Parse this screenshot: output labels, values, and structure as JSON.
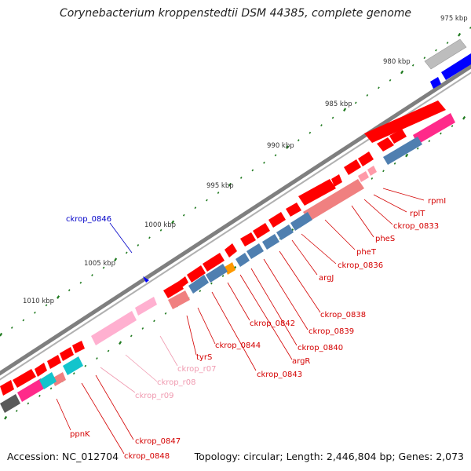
{
  "title": "Corynebacterium kroppenstedtii DSM 44385, complete genome",
  "footer": {
    "accession": "Accession: NC_012704",
    "topology": "Topology: circular; Length: 2,446,804 bp; Genes: 2,073"
  },
  "colors": {
    "backbone": "#7f7f7f",
    "cds": "#ff0000",
    "trna": "#ff9aa8",
    "pink_track": "#ff2a8a",
    "steel_blue": "#4f7fb0",
    "cyan": "#12c4cc",
    "orange": "#ff9900",
    "gray_feature": "#bdbdbd",
    "blue_feature": "#0000ff",
    "dark_gray": "#5a5a5a",
    "scale_ticks": "#1f7a1f",
    "label_red": "#d40000",
    "label_pink": "#f09ab0",
    "label_blue": "#0000c8"
  },
  "scale": {
    "kbp_labels": [
      "975 kbp",
      "980 kbp",
      "985 kbp",
      "990 kbp",
      "995 kbp",
      "1000 kbp",
      "1005 kbp",
      "1010 kbp"
    ]
  },
  "labels": {
    "rpml": "rpmI",
    "rplt": "rplT",
    "ckrop_0833": "ckrop_0833",
    "phes": "pheS",
    "phet": "pheT",
    "ckrop_0836": "ckrop_0836",
    "argj": "argJ",
    "ckrop_0838": "ckrop_0838",
    "ckrop_0839": "ckrop_0839",
    "ckrop_0840": "ckrop_0840",
    "argr": "argR",
    "ckrop_0842": "ckrop_0842",
    "ckrop_0843": "ckrop_0843",
    "ckrop_0844": "ckrop_0844",
    "tyrs": "tyrS",
    "ckrop_r07": "ckrop_r07",
    "ckrop_r08": "ckrop_r08",
    "ckrop_r09": "ckrop_r09",
    "ckrop_0846": "ckrop_0846",
    "ppnk": "ppnK",
    "ckrop_0847": "ckrop_0847",
    "ckrop_0848": "ckrop_0848"
  }
}
